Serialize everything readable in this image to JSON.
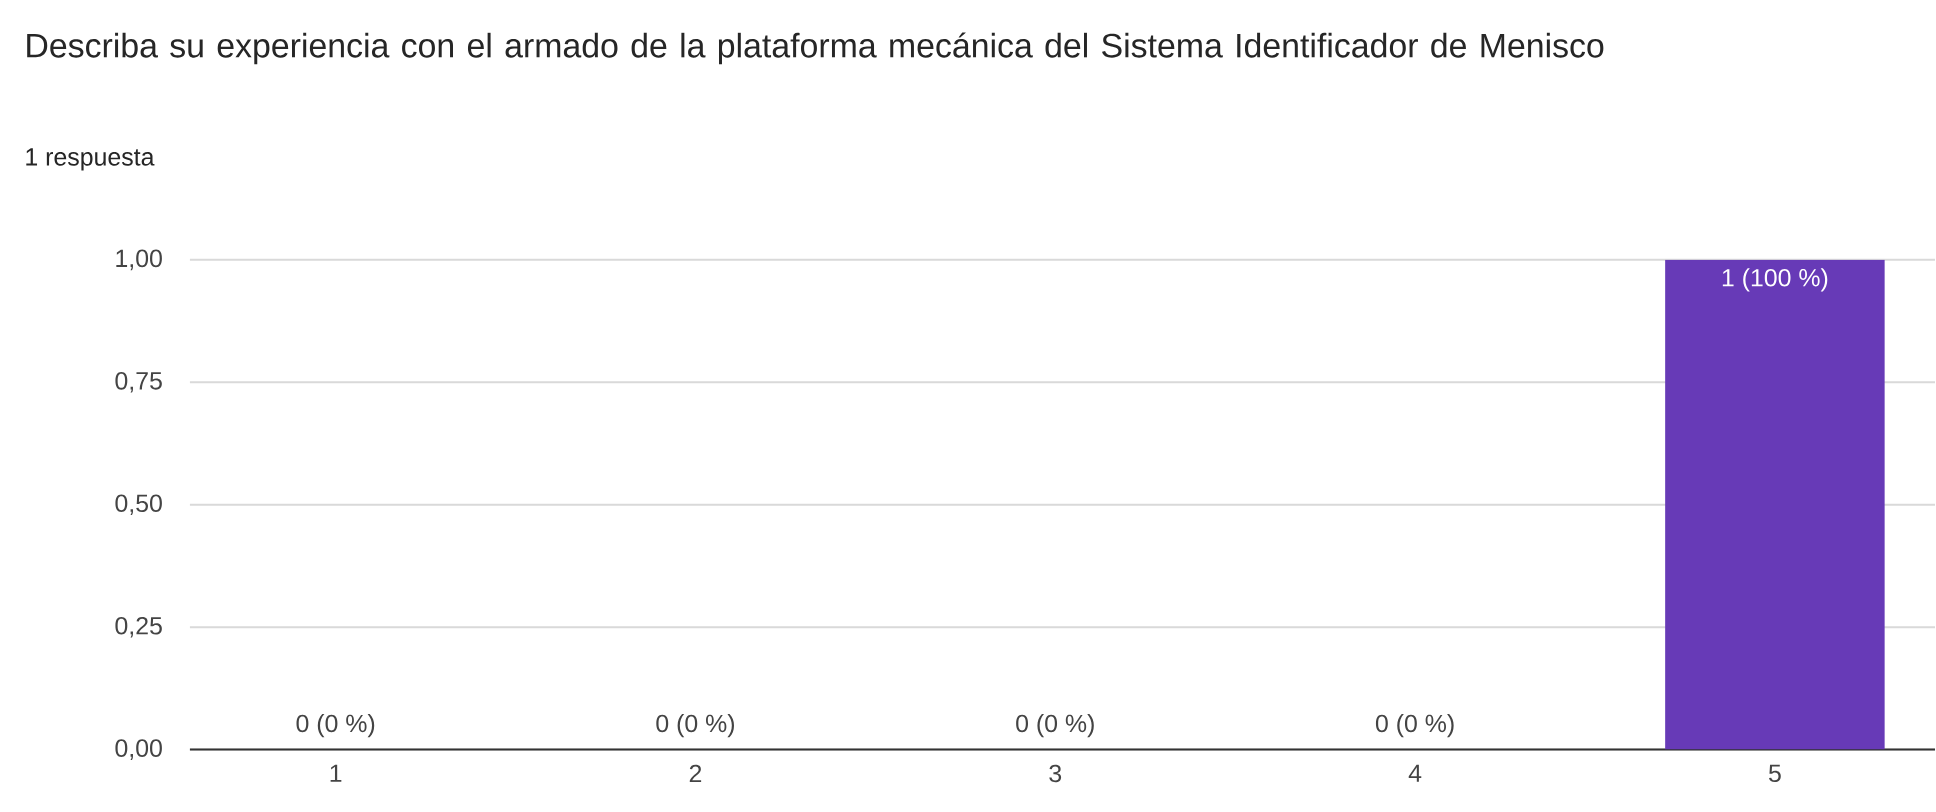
{
  "chart_data": {
    "type": "bar",
    "title": "Describa su experiencia con el armado de la plataforma mecánica del Sistema Identificador de Menisco",
    "subtitle": "1 respuesta",
    "categories": [
      "1",
      "2",
      "3",
      "4",
      "5"
    ],
    "values": [
      0,
      0,
      0,
      0,
      1
    ],
    "color": "#673ab7",
    "value_labels": [
      "0 (0 %)",
      "0 (0 %)",
      "0 (0 %)",
      "0 (0 %)",
      "1 (100 %)"
    ],
    "ylim": [
      0,
      1
    ],
    "yticks": [
      {
        "value": 0,
        "label": "0,00"
      },
      {
        "value": 0.25,
        "label": "0,25"
      },
      {
        "value": 0.5,
        "label": "0,50"
      },
      {
        "value": 0.75,
        "label": "0,75"
      },
      {
        "value": 1,
        "label": "1,00"
      }
    ],
    "grid": "y"
  }
}
